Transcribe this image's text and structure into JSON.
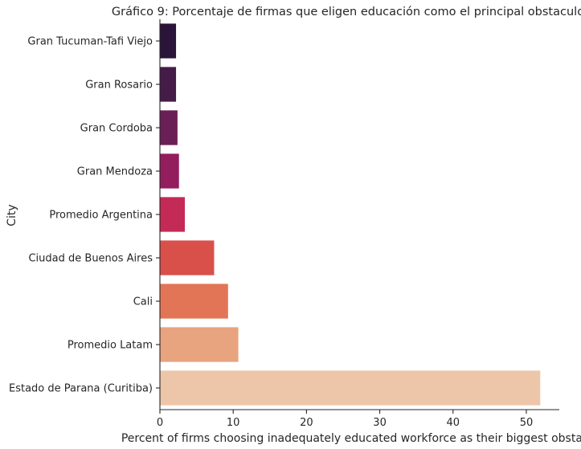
{
  "chart_data": {
    "type": "bar",
    "orientation": "horizontal",
    "title": "Gráfico 9: Porcentaje de firmas que eligen educación como el principal obstaculo",
    "xlabel": "Percent of firms choosing inadequately educated workforce as their biggest obstacle",
    "ylabel": "City",
    "xlim": [
      0,
      54.5
    ],
    "xticks": [
      0,
      10,
      20,
      30,
      40,
      50
    ],
    "grid": false,
    "highlight_category": "Gran Cordoba",
    "highlight_color": "#ff0000",
    "categories": [
      "Gran Tucuman-Tafi Viejo",
      "Gran Rosario",
      "Gran Cordoba",
      "Gran Mendoza",
      "Promedio Argentina",
      "Ciudad de Buenos Aires",
      "Cali",
      "Promedio Latam",
      "Estado de Parana (Curitiba)"
    ],
    "values": [
      2.2,
      2.2,
      2.4,
      2.6,
      3.4,
      7.4,
      9.3,
      10.7,
      51.9
    ],
    "colors": [
      "#2a1439",
      "#451c47",
      "#6b1f57",
      "#931d5d",
      "#c42a56",
      "#d9504b",
      "#e27556",
      "#e7a47e",
      "#edc6aa"
    ]
  }
}
